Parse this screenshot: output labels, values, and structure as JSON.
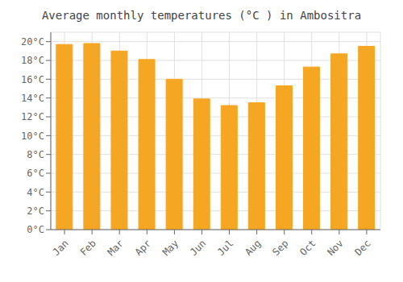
{
  "chart_data": {
    "type": "bar",
    "title": "Average monthly temperatures (°C ) in Ambositra",
    "categories": [
      "Jan",
      "Feb",
      "Mar",
      "Apr",
      "May",
      "Jun",
      "Jul",
      "Aug",
      "Sep",
      "Oct",
      "Nov",
      "Dec"
    ],
    "values": [
      19.7,
      19.8,
      19.0,
      18.1,
      16.0,
      13.9,
      13.2,
      13.5,
      15.3,
      17.3,
      18.7,
      19.5
    ],
    "color": "#F5A623",
    "ylim": [
      0,
      21
    ],
    "yticks": [
      {
        "value": 0,
        "label": "0°C"
      },
      {
        "value": 2,
        "label": "2°C"
      },
      {
        "value": 4,
        "label": "4°C"
      },
      {
        "value": 6,
        "label": "6°C"
      },
      {
        "value": 8,
        "label": "8°C"
      },
      {
        "value": 10,
        "label": "10°C"
      },
      {
        "value": 12,
        "label": "12°C"
      },
      {
        "value": 14,
        "label": "14°C"
      },
      {
        "value": 16,
        "label": "16°C"
      },
      {
        "value": 18,
        "label": "18°C"
      },
      {
        "value": 20,
        "label": "20°C"
      }
    ],
    "grid": true
  }
}
